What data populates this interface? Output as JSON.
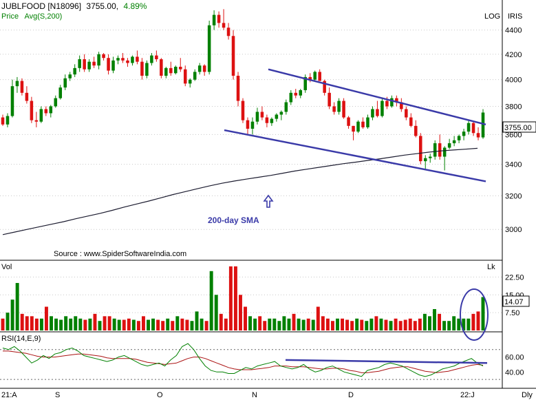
{
  "header": {
    "symbol": "JUBLFOOD [N18096]",
    "last_price": "3755.00,",
    "change_pct": "4.89%",
    "price_label": "Price",
    "avg_label": "Avg(S,200)",
    "log_label": "LOG",
    "iris_label": "IRIS"
  },
  "annotations": {
    "sma_label": "200-day SMA",
    "source": "Source : www.SpiderSoftwareIndia.com",
    "price_badge": "3755.00"
  },
  "volume_panel": {
    "label": "Vol",
    "unit": "Lk",
    "badge": "14.07"
  },
  "rsi_panel": {
    "label": "RSI(14,E,9)"
  },
  "x_axis": {
    "labels": [
      "21:A",
      "S",
      "O",
      "N",
      "D",
      "22:J"
    ],
    "right_label": "Dly"
  },
  "colors": {
    "up": "#008000",
    "down": "#dd1111",
    "trendline": "#3a3aa8",
    "sma": "#1a1a2e",
    "rsi": "#008000",
    "rsi_signal": "#aa1111",
    "grid": "#c8c8c8"
  },
  "chart_data": {
    "type": "candlestick",
    "price": {
      "y_ticks": [
        3000,
        3200,
        3400,
        3600,
        3800,
        4000,
        4200,
        4400
      ],
      "ylim": [
        2850,
        4600
      ],
      "scale": "log",
      "candles": [
        [
          3720,
          3740,
          3660,
          3670
        ],
        [
          3670,
          3750,
          3650,
          3730
        ],
        [
          3730,
          4000,
          3720,
          3950
        ],
        [
          3950,
          4020,
          3900,
          3990
        ],
        [
          3990,
          4010,
          3880,
          3900
        ],
        [
          3900,
          3950,
          3820,
          3840
        ],
        [
          3840,
          3870,
          3680,
          3700
        ],
        [
          3700,
          3760,
          3650,
          3690
        ],
        [
          3690,
          3800,
          3680,
          3780
        ],
        [
          3780,
          3800,
          3730,
          3750
        ],
        [
          3750,
          3810,
          3720,
          3800
        ],
        [
          3800,
          3880,
          3790,
          3860
        ],
        [
          3860,
          3960,
          3850,
          3940
        ],
        [
          3940,
          4040,
          3920,
          4010
        ],
        [
          4010,
          4060,
          3990,
          4040
        ],
        [
          4040,
          4120,
          4020,
          4090
        ],
        [
          4090,
          4190,
          4060,
          4160
        ],
        [
          4160,
          4200,
          4060,
          4080
        ],
        [
          4080,
          4160,
          4060,
          4140
        ],
        [
          4140,
          4180,
          4090,
          4110
        ],
        [
          4110,
          4220,
          4080,
          4200
        ],
        [
          4200,
          4210,
          4150,
          4170
        ],
        [
          4170,
          4200,
          4040,
          4070
        ],
        [
          4070,
          4180,
          4050,
          4150
        ],
        [
          4150,
          4190,
          4120,
          4170
        ],
        [
          4170,
          4210,
          4130,
          4150
        ],
        [
          4150,
          4170,
          4100,
          4130
        ],
        [
          4130,
          4190,
          4110,
          4180
        ],
        [
          4180,
          4230,
          4120,
          4140
        ],
        [
          4140,
          4170,
          4000,
          4030
        ],
        [
          4030,
          4150,
          4010,
          4130
        ],
        [
          4130,
          4210,
          4110,
          4190
        ],
        [
          4190,
          4230,
          4140,
          4160
        ],
        [
          4160,
          4170,
          4010,
          4030
        ],
        [
          4030,
          4100,
          4010,
          4090
        ],
        [
          4090,
          4140,
          4030,
          4050
        ],
        [
          4050,
          4110,
          4040,
          4100
        ],
        [
          4100,
          4170,
          4060,
          4080
        ],
        [
          4080,
          4110,
          3950,
          3970
        ],
        [
          3970,
          4010,
          3940,
          4000
        ],
        [
          4000,
          4080,
          3990,
          4060
        ],
        [
          4060,
          4130,
          4040,
          4110
        ],
        [
          4110,
          4120,
          4030,
          4060
        ],
        [
          4060,
          4480,
          4040,
          4440
        ],
        [
          4440,
          4570,
          4400,
          4530
        ],
        [
          4530,
          4560,
          4420,
          4460
        ],
        [
          4460,
          4580,
          4400,
          4420
        ],
        [
          4420,
          4460,
          4320,
          4350
        ],
        [
          4350,
          4400,
          4000,
          4030
        ],
        [
          4030,
          4060,
          3800,
          3840
        ],
        [
          3840,
          3860,
          3680,
          3700
        ],
        [
          3700,
          3720,
          3600,
          3640
        ],
        [
          3640,
          3720,
          3600,
          3690
        ],
        [
          3690,
          3790,
          3670,
          3760
        ],
        [
          3760,
          3800,
          3700,
          3720
        ],
        [
          3720,
          3740,
          3650,
          3680
        ],
        [
          3680,
          3720,
          3660,
          3710
        ],
        [
          3710,
          3750,
          3690,
          3740
        ],
        [
          3740,
          3770,
          3700,
          3760
        ],
        [
          3760,
          3850,
          3740,
          3830
        ],
        [
          3830,
          3920,
          3810,
          3900
        ],
        [
          3900,
          3930,
          3860,
          3880
        ],
        [
          3880,
          3930,
          3860,
          3920
        ],
        [
          3920,
          4040,
          3900,
          4020
        ],
        [
          4020,
          4050,
          3980,
          4000
        ],
        [
          4000,
          4070,
          3990,
          4060
        ],
        [
          4060,
          4080,
          3990,
          3990
        ],
        [
          3990,
          4000,
          3880,
          3900
        ],
        [
          3900,
          3940,
          3780,
          3800
        ],
        [
          3800,
          3830,
          3740,
          3760
        ],
        [
          3760,
          3860,
          3740,
          3840
        ],
        [
          3840,
          3860,
          3710,
          3720
        ],
        [
          3720,
          3730,
          3640,
          3660
        ],
        [
          3660,
          3660,
          3560,
          3620
        ],
        [
          3620,
          3700,
          3610,
          3690
        ],
        [
          3690,
          3720,
          3640,
          3650
        ],
        [
          3650,
          3740,
          3640,
          3720
        ],
        [
          3720,
          3800,
          3700,
          3780
        ],
        [
          3780,
          3840,
          3720,
          3730
        ],
        [
          3730,
          3860,
          3720,
          3840
        ],
        [
          3840,
          3870,
          3780,
          3800
        ],
        [
          3800,
          3880,
          3790,
          3860
        ],
        [
          3860,
          3880,
          3800,
          3830
        ],
        [
          3830,
          3860,
          3760,
          3780
        ],
        [
          3780,
          3800,
          3700,
          3720
        ],
        [
          3720,
          3750,
          3650,
          3660
        ],
        [
          3660,
          3700,
          3580,
          3590
        ],
        [
          3590,
          3610,
          3400,
          3420
        ],
        [
          3420,
          3460,
          3360,
          3440
        ],
        [
          3440,
          3470,
          3410,
          3450
        ],
        [
          3450,
          3560,
          3430,
          3540
        ],
        [
          3540,
          3600,
          3430,
          3450
        ],
        [
          3450,
          3520,
          3360,
          3510
        ],
        [
          3510,
          3570,
          3500,
          3540
        ],
        [
          3540,
          3590,
          3520,
          3560
        ],
        [
          3560,
          3600,
          3540,
          3590
        ],
        [
          3590,
          3640,
          3560,
          3620
        ],
        [
          3620,
          3700,
          3600,
          3680
        ],
        [
          3680,
          3690,
          3590,
          3610
        ],
        [
          3610,
          3650,
          3560,
          3580
        ],
        [
          3580,
          3780,
          3570,
          3755
        ]
      ],
      "sma200": [
        2970,
        2985,
        3000,
        3015,
        3030,
        3045,
        3062,
        3078,
        3094,
        3112,
        3132,
        3150,
        3168,
        3188,
        3208,
        3226,
        3244,
        3262,
        3278,
        3292,
        3304,
        3316,
        3328,
        3342,
        3356,
        3368,
        3380,
        3392,
        3404,
        3414,
        3425,
        3436,
        3448,
        3460,
        3470,
        3480,
        3488,
        3494,
        3500,
        3506
      ]
    },
    "trendlines": {
      "upper": [
        [
          390,
          4080
        ],
        [
          706,
          3670
        ]
      ],
      "lower": [
        [
          326,
          3630
        ],
        [
          706,
          3290
        ]
      ]
    },
    "volume": {
      "y_ticks": [
        7.5,
        15,
        22.5
      ],
      "ylim": [
        0,
        29
      ],
      "values": [
        5,
        7.5,
        13,
        20,
        7,
        6,
        6,
        5,
        5,
        10,
        6,
        5,
        4.5,
        6,
        5,
        6,
        5,
        4.5,
        5,
        7,
        4,
        6,
        6,
        5,
        4.5,
        4.5,
        5,
        4.5,
        4,
        6,
        4.5,
        5,
        4.5,
        4,
        5,
        4,
        6,
        5,
        4.5,
        4,
        8,
        5,
        4,
        25,
        15,
        7,
        5,
        27,
        27,
        15,
        10,
        6,
        5,
        6,
        4,
        5,
        5,
        4,
        6,
        5,
        7,
        5,
        4.5,
        5,
        4.5,
        10,
        6,
        5,
        4,
        5,
        5,
        4.5,
        4,
        5,
        4.5,
        4,
        5,
        6,
        5,
        4.5,
        4,
        5,
        4,
        4.5,
        5,
        4,
        5,
        7,
        6,
        9,
        7,
        4,
        4,
        6,
        5,
        5,
        5,
        7,
        8,
        14.07
      ]
    },
    "rsi": {
      "y_ticks": [
        40,
        60
      ],
      "ylim": [
        20,
        90
      ],
      "values": [
        72,
        70,
        74,
        68,
        60,
        52,
        56,
        62,
        58,
        64,
        66,
        70,
        72,
        68,
        62,
        60,
        58,
        56,
        54,
        56,
        60,
        62,
        58,
        54,
        50,
        48,
        50,
        52,
        48,
        56,
        62,
        74,
        78,
        70,
        58,
        48,
        42,
        40,
        40,
        38,
        38,
        42,
        46,
        44,
        48,
        50,
        52,
        54,
        48,
        46,
        44,
        46,
        50,
        44,
        40,
        42,
        46,
        48,
        44,
        40,
        38,
        36,
        34,
        42,
        44,
        46,
        50,
        52,
        50,
        48,
        44,
        40,
        36,
        34,
        36,
        40,
        44,
        46,
        48,
        52,
        55,
        58,
        52,
        48
      ],
      "signal": [
        68,
        68,
        67,
        66,
        65,
        63,
        61,
        60,
        60,
        60,
        61,
        62,
        63,
        64,
        64,
        63,
        62,
        61,
        59,
        58,
        58,
        58,
        58,
        57,
        55,
        53,
        52,
        51,
        50,
        51,
        52,
        55,
        58,
        60,
        60,
        58,
        55,
        52,
        49,
        46,
        44,
        43,
        43,
        43,
        44,
        45,
        46,
        48,
        48,
        48,
        47,
        47,
        47,
        46,
        45,
        44,
        44,
        45,
        45,
        44,
        42,
        41,
        39,
        39,
        40,
        41,
        43,
        45,
        46,
        47,
        47,
        45,
        43,
        41,
        40,
        39,
        40,
        41,
        43,
        45,
        47,
        49,
        50,
        49
      ],
      "trendline": [
        [
          415,
          56
        ],
        [
          708,
          52
        ]
      ]
    }
  }
}
